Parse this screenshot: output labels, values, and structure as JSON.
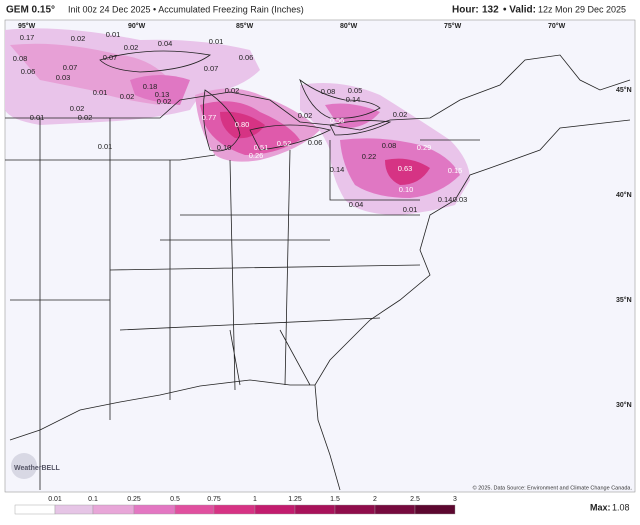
{
  "header": {
    "model": "GEM 0.15°",
    "subtitle": "Init 00z 24 Dec 2025 • Accumulated Freezing Rain (Inches)",
    "hour_label": "Hour:",
    "hour": "132",
    "valid_label": "• Valid:",
    "valid": "12z Mon 29 Dec 2025"
  },
  "longitudes": [
    "95°W",
    "90°W",
    "85°W",
    "80°W",
    "75°W",
    "70°W"
  ],
  "latitudes": [
    "45°N",
    "40°N",
    "35°N",
    "30°N"
  ],
  "map_labels": [
    "0.17",
    "0.02",
    "0.01",
    "0.08",
    "0.02",
    "0.06",
    "0.07",
    "0.07",
    "0.03",
    "0.01",
    "0.02",
    "0.18",
    "0.13",
    "0.02",
    "0.07",
    "0.01",
    "0.06",
    "0.02",
    "0.04",
    "0.02",
    "0.02",
    "0.01",
    "0.01",
    "0.77",
    "0.80",
    "0.10",
    "0.51",
    "0.26",
    "0.52",
    "0.02",
    "0.06",
    "0.08",
    "0.05",
    "0.14",
    "0.56",
    "0.02",
    "0.08",
    "0.29",
    "0.22",
    "0.14",
    "0.63",
    "0.10",
    "0.15",
    "0.14",
    "0.03",
    "0.04",
    "0.01"
  ],
  "logo": "WeatherBELL",
  "credit": "© 2025. Data Source: Environment and Climate Change Canada.",
  "colorbar": [
    "0.01",
    "0.1",
    "0.25",
    "0.5",
    "0.75",
    "1",
    "1.25",
    "1.5",
    "2",
    "2.5",
    "3"
  ],
  "max_label": "Max:",
  "max": "1.08"
}
